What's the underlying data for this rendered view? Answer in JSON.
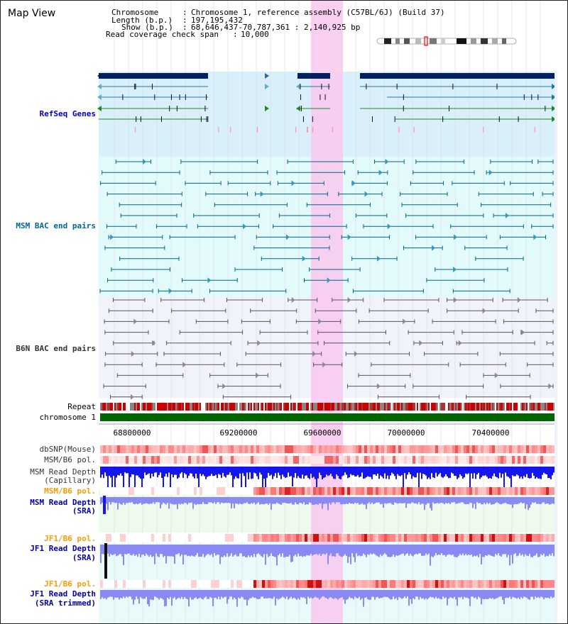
{
  "view_title": "Map View",
  "header": {
    "chromosome_label": "Chromosome",
    "chromosome_value": "Chromosome 1, reference assembly (C57BL/6J) (Build 37)",
    "length_label": "Length (b.p.)",
    "length_value": "197,195,432",
    "show_label": "Show (b.p.)",
    "show_value": "68,646,437-70,787,361 : 2,140,925 bp",
    "coverage_label": "Read coverage check span",
    "coverage_value": "10,000"
  },
  "tracks": {
    "refseq": "RefSeq Genes",
    "msm_bac": "MSM BAC end pairs",
    "b6n_bac": "B6N BAC end pairs",
    "repeat": "Repeat",
    "chromosome": "chromosome 1",
    "dbsnp": "dbSNP(Mouse)",
    "msm_b6_pol_1": "MSM/B6 pol.",
    "msm_depth_cap_1": "MSM Read Depth",
    "msm_depth_cap_2": "(Capillary)",
    "msm_b6_pol_2": "MSM/B6 pol.",
    "msm_depth_sra_1": "MSM Read Depth",
    "msm_depth_sra_2": "(SRA)",
    "jf1_b6_pol_1": "JF1/B6 pol.",
    "jf1_depth_sra_1": "JF1 Read Depth",
    "jf1_depth_sra_2": "(SRA)",
    "jf1_b6_pol_2": "JF1/B6 pol.",
    "jf1_depth_trim_1": "JF1 Read Depth",
    "jf1_depth_trim_2": "(SRA trimmed)"
  },
  "axis": {
    "ticks": [
      "68800000",
      "69200000",
      "69600000",
      "70000000",
      "70400000"
    ]
  },
  "colors": {
    "refseq_label": "#0000cc",
    "msm_label": "#006699",
    "b6n_label": "#333333",
    "pol_label": "#ff9900",
    "depth_label": "#0000aa",
    "highlight": "#f9c8ef",
    "refseq_bg": "#d9f0fb",
    "msm_bg": "#e3fafb",
    "b6n_bg": "#f1f3fa",
    "chromosome_bar": "#006600",
    "depth_blue": "#1515ee",
    "depth_light": "#8a8af5"
  }
}
